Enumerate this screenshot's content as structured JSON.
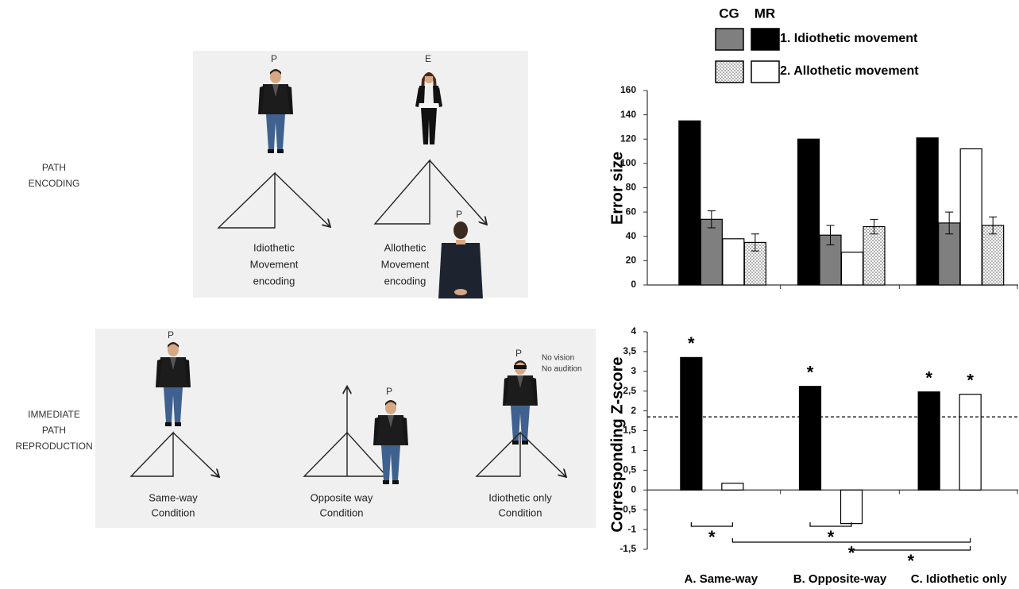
{
  "diagram": {
    "encoding": {
      "label": [
        "PATH",
        "ENCODING"
      ],
      "panels": [
        {
          "agent": "P",
          "caption": [
            "Idiothetic",
            "Movement",
            "encoding"
          ]
        },
        {
          "agent": "E",
          "observer": "P",
          "caption": [
            "Allothetic",
            "Movement",
            "encoding"
          ]
        }
      ]
    },
    "reproduction": {
      "label": [
        "IMMEDIATE",
        "PATH",
        "REPRODUCTION"
      ],
      "panels": [
        {
          "agent": "P",
          "caption": [
            "Same-way",
            "Condition"
          ]
        },
        {
          "agent": "P",
          "caption": [
            "Opposite way",
            "Condition"
          ]
        },
        {
          "agent": "P",
          "note": [
            "No vision",
            "No audition"
          ],
          "caption": [
            "Idiothetic only",
            "Condition"
          ]
        }
      ]
    }
  },
  "legend": {
    "columns": [
      "CG",
      "MR"
    ],
    "rows": [
      "1. Idiothetic movement",
      "2. Allothetic movement"
    ]
  },
  "chart_data": [
    {
      "type": "bar",
      "y_label": "Error size",
      "ylim": [
        0,
        160
      ],
      "yticks": [
        0,
        20,
        40,
        60,
        80,
        100,
        120,
        140,
        160
      ],
      "series": [
        {
          "color": "#000000",
          "values": [
            135,
            120,
            121
          ],
          "legend_row": 0,
          "legend_column": 1
        },
        {
          "color": "#7f7f7f",
          "values": [
            54,
            41,
            51
          ],
          "errors": [
            7,
            8,
            9
          ],
          "legend_row": 0,
          "legend_column": 0
        },
        {
          "color": "#ffffff",
          "values": [
            38,
            27,
            112
          ],
          "legend_row": 1,
          "legend_column": 1
        },
        {
          "color": "#ffffff",
          "pattern": "dots",
          "values": [
            35,
            48,
            49
          ],
          "errors": [
            7,
            6,
            7
          ],
          "legend_row": 1,
          "legend_column": 0
        }
      ]
    },
    {
      "type": "bar",
      "y_label": "Corresponding Z-score",
      "categories": [
        "A. Same-way",
        "B. Opposite-way",
        "C. Idiothetic only"
      ],
      "ylim": [
        -1.5,
        4
      ],
      "yticks": [
        4,
        {
          "value": 3.5,
          "label": "3,5"
        },
        3,
        {
          "value": 2.5,
          "label": "2,5"
        },
        2,
        {
          "value": 1.5,
          "label": "1,5"
        },
        1,
        {
          "value": 0.5,
          "label": "0,5"
        },
        0,
        {
          "value": -0.5,
          "label": "-0,5"
        },
        -1,
        {
          "value": -1.5,
          "label": "-1,5"
        }
      ],
      "reference_line": 1.85,
      "significance_marker": "*",
      "series": [
        {
          "color": "#000000",
          "values": [
            3.35,
            2.62,
            2.48
          ],
          "significant": [
            true,
            true,
            true
          ]
        },
        {
          "color": "#ffffff",
          "values": [
            0.17,
            -0.85,
            2.42
          ],
          "significant": [
            false,
            false,
            true
          ]
        }
      ],
      "comparisons": [
        {
          "between": [
            [
              0,
              0
            ],
            [
              1,
              0
            ]
          ]
        },
        {
          "between": [
            [
              0,
              1
            ],
            [
              1,
              1
            ]
          ]
        },
        {
          "between": [
            [
              1,
              0
            ],
            [
              1,
              2
            ]
          ]
        },
        {
          "between": [
            [
              1,
              1
            ],
            [
              1,
              2
            ]
          ]
        }
      ]
    }
  ]
}
